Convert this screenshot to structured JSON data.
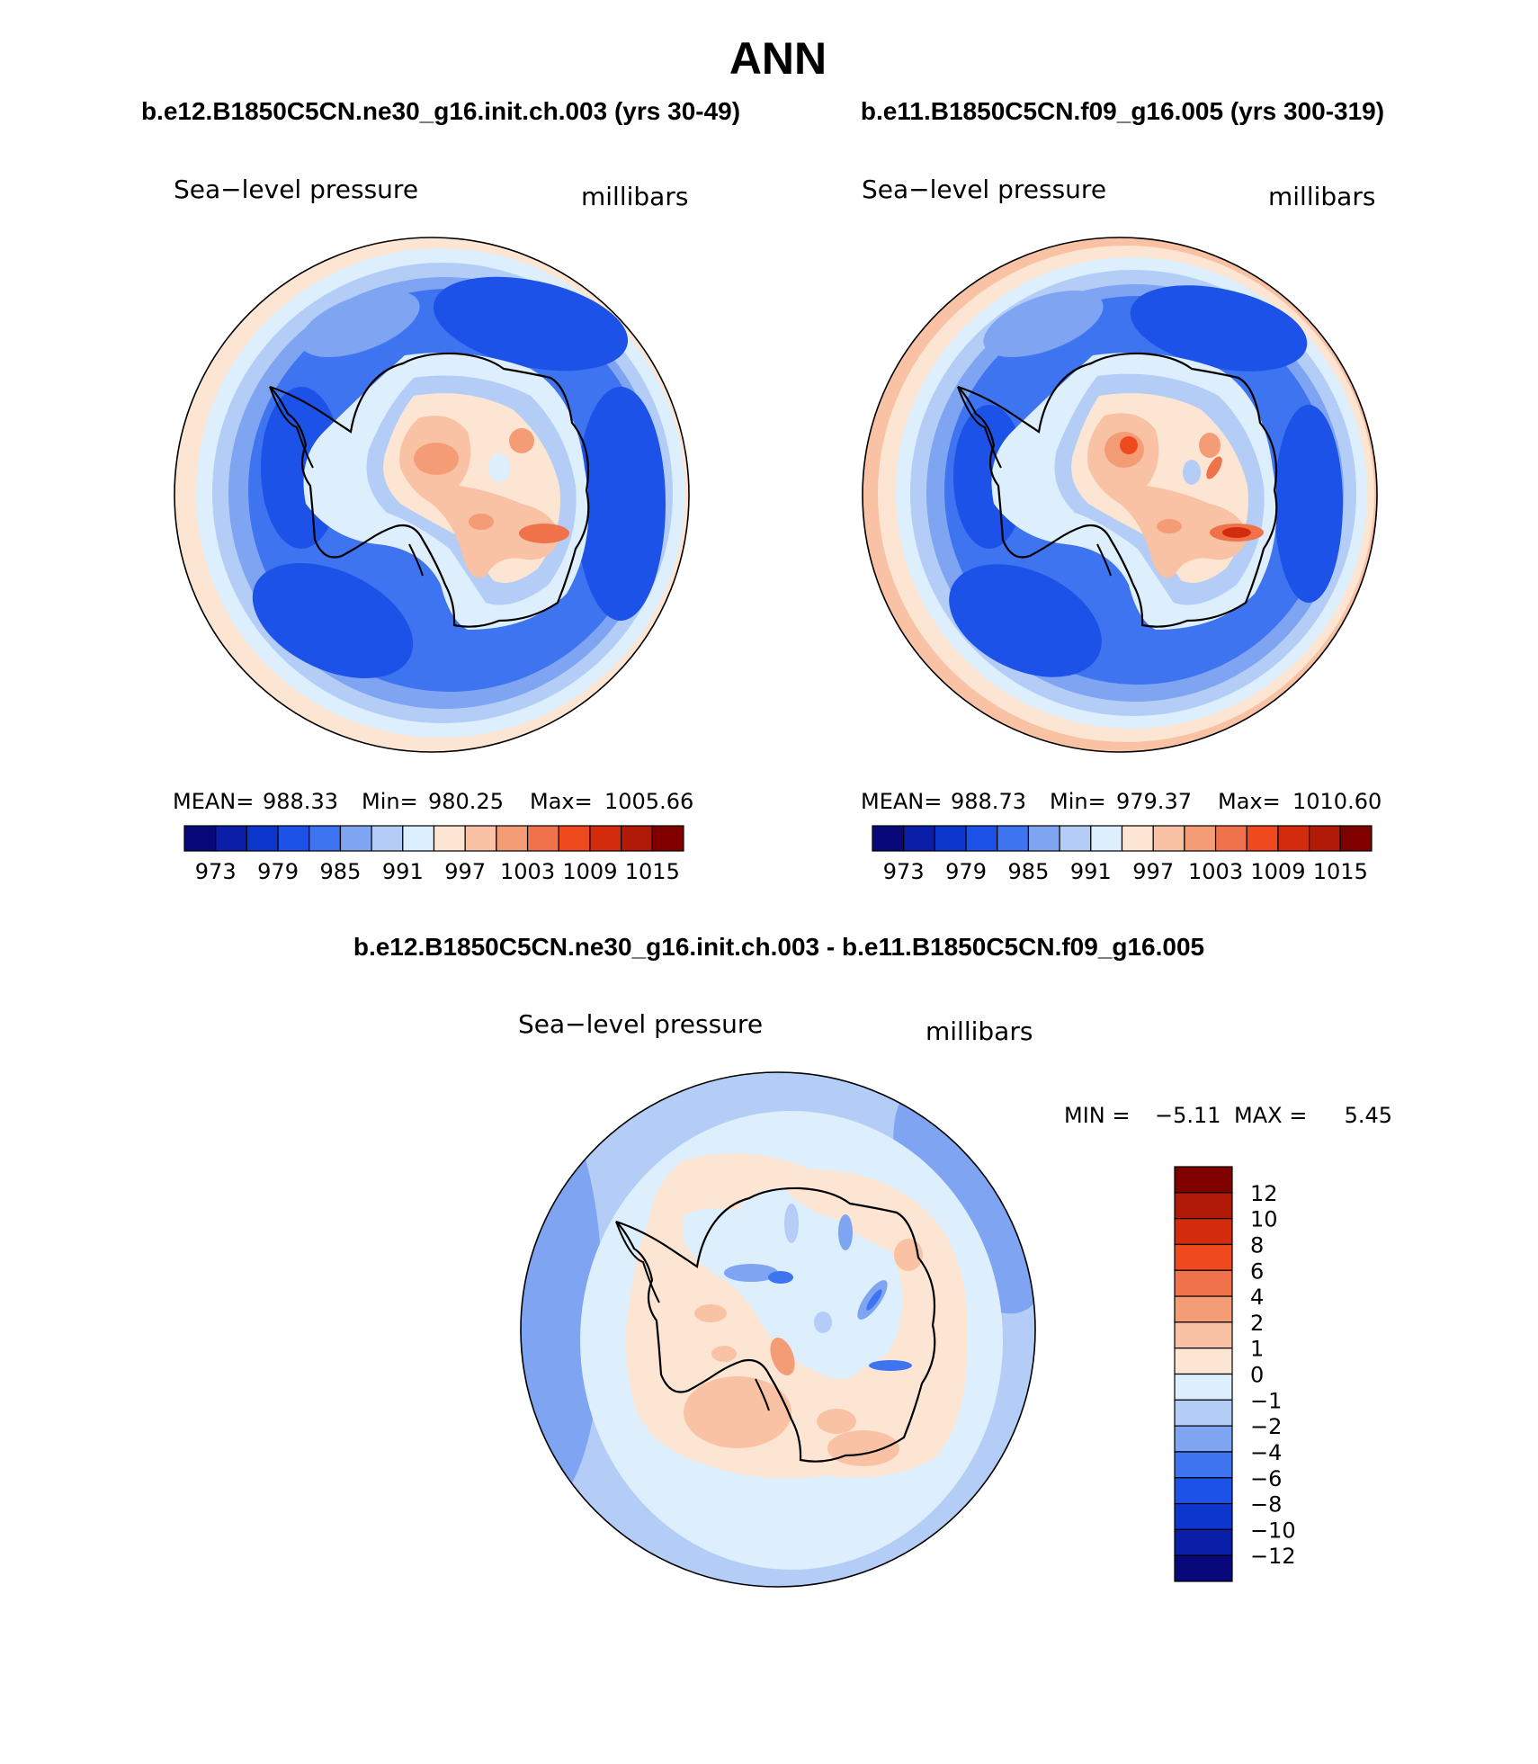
{
  "figure_title": "ANN",
  "panels": [
    {
      "case_title": "b.e12.B1850C5CN.ne30_g16.init.ch.003 (yrs 30-49)",
      "variable": "Sea−level pressure",
      "units": "millibars",
      "stats": {
        "mean_label": "MEAN=",
        "mean": "988.33",
        "min_label": "Min=",
        "min": "980.25",
        "max_label": "Max=",
        "max": "1005.66"
      }
    },
    {
      "case_title": "b.e11.B1850C5CN.f09_g16.005 (yrs 300-319)",
      "variable": "Sea−level pressure",
      "units": "millibars",
      "stats": {
        "mean_label": "MEAN=",
        "mean": "988.73",
        "min_label": "Min=",
        "min": "979.37",
        "max_label": "Max=",
        "max": "1010.60"
      }
    }
  ],
  "diff_panel": {
    "title": "b.e12.B1850C5CN.ne30_g16.init.ch.003 - b.e11.B1850C5CN.f09_g16.005",
    "variable": "Sea−level pressure",
    "units": "millibars",
    "minmax": {
      "min_label": "MIN =",
      "min": "−5.11",
      "max_label": "MAX =",
      "max": "5.45"
    }
  },
  "chart_data": [
    {
      "type": "heatmap",
      "projection": "south-polar-stereographic",
      "title": "b.e12.B1850C5CN.ne30_g16.init.ch.003 (yrs 30-49)",
      "variable": "Sea-level pressure",
      "units": "millibars",
      "mean": 988.33,
      "min": 980.25,
      "max": 1005.66,
      "colorbar": {
        "orientation": "horizontal",
        "tick_labels": [
          "973",
          "979",
          "985",
          "991",
          "997",
          "1003",
          "1009",
          "1015"
        ],
        "colors": [
          "#08087a",
          "#0a1ea8",
          "#0c36cc",
          "#1d52e8",
          "#3f74f0",
          "#7ea4f2",
          "#b3cdf7",
          "#ddeefc",
          "#fde5d3",
          "#f9c2a4",
          "#f49c76",
          "#f0724a",
          "#ee4a1e",
          "#d22c0c",
          "#b01a06",
          "#800000"
        ]
      }
    },
    {
      "type": "heatmap",
      "projection": "south-polar-stereographic",
      "title": "b.e11.B1850C5CN.f09_g16.005 (yrs 300-319)",
      "variable": "Sea-level pressure",
      "units": "millibars",
      "mean": 988.73,
      "min": 979.37,
      "max": 1010.6,
      "colorbar": {
        "orientation": "horizontal",
        "tick_labels": [
          "973",
          "979",
          "985",
          "991",
          "997",
          "1003",
          "1009",
          "1015"
        ],
        "colors": [
          "#08087a",
          "#0a1ea8",
          "#0c36cc",
          "#1d52e8",
          "#3f74f0",
          "#7ea4f2",
          "#b3cdf7",
          "#ddeefc",
          "#fde5d3",
          "#f9c2a4",
          "#f49c76",
          "#f0724a",
          "#ee4a1e",
          "#d22c0c",
          "#b01a06",
          "#800000"
        ]
      }
    },
    {
      "type": "heatmap",
      "projection": "south-polar-stereographic",
      "title": "b.e12.B1850C5CN.ne30_g16.init.ch.003 - b.e11.B1850C5CN.f09_g16.005",
      "variable": "Sea-level pressure",
      "units": "millibars",
      "min": -5.11,
      "max": 5.45,
      "colorbar": {
        "orientation": "vertical",
        "tick_labels": [
          "12",
          "10",
          "8",
          "6",
          "4",
          "2",
          "1",
          "0",
          "−1",
          "−2",
          "−4",
          "−6",
          "−8",
          "−10",
          "−12"
        ],
        "colors_top_to_bottom": [
          "#800000",
          "#b01a06",
          "#d22c0c",
          "#ee4a1e",
          "#f0724a",
          "#f49c76",
          "#f9c2a4",
          "#fde5d3",
          "#ddeefc",
          "#b3cdf7",
          "#7ea4f2",
          "#3f74f0",
          "#1d52e8",
          "#0c36cc",
          "#0a1ea8",
          "#08087a"
        ]
      }
    }
  ]
}
